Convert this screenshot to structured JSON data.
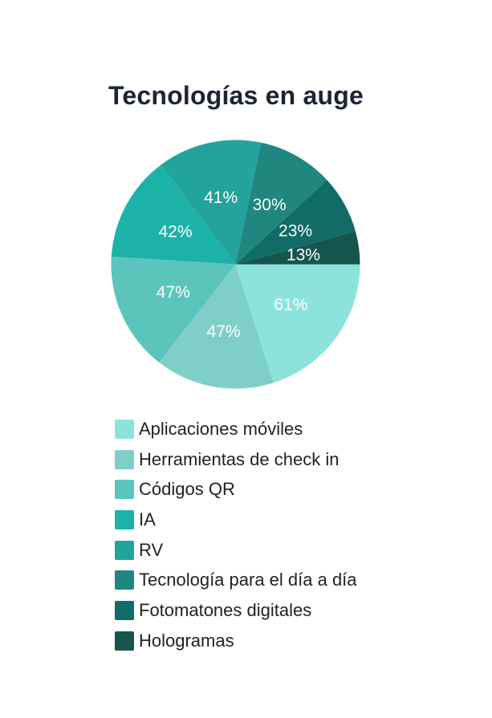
{
  "chart_data": {
    "type": "pie",
    "title": "Tecnologías en auge",
    "value_suffix": "%",
    "slices": [
      {
        "label": "Aplicaciones móviles",
        "value": 61,
        "color": "#8be3dc"
      },
      {
        "label": "Herramientas de check in",
        "value": 47,
        "color": "#7fcfc9"
      },
      {
        "label": "Códigos QR",
        "value": 47,
        "color": "#5bc5bd"
      },
      {
        "label": "IA",
        "value": 42,
        "color": "#1cb2a8"
      },
      {
        "label": "RV",
        "value": 41,
        "color": "#22a39b"
      },
      {
        "label": "Tecnología para el día a día",
        "value": 30,
        "color": "#1f8780"
      },
      {
        "label": "Fotomatones digitales",
        "value": 23,
        "color": "#116b66"
      },
      {
        "label": "Hologramas",
        "value": 13,
        "color": "#16564f"
      }
    ],
    "legend_position": "bottom"
  }
}
